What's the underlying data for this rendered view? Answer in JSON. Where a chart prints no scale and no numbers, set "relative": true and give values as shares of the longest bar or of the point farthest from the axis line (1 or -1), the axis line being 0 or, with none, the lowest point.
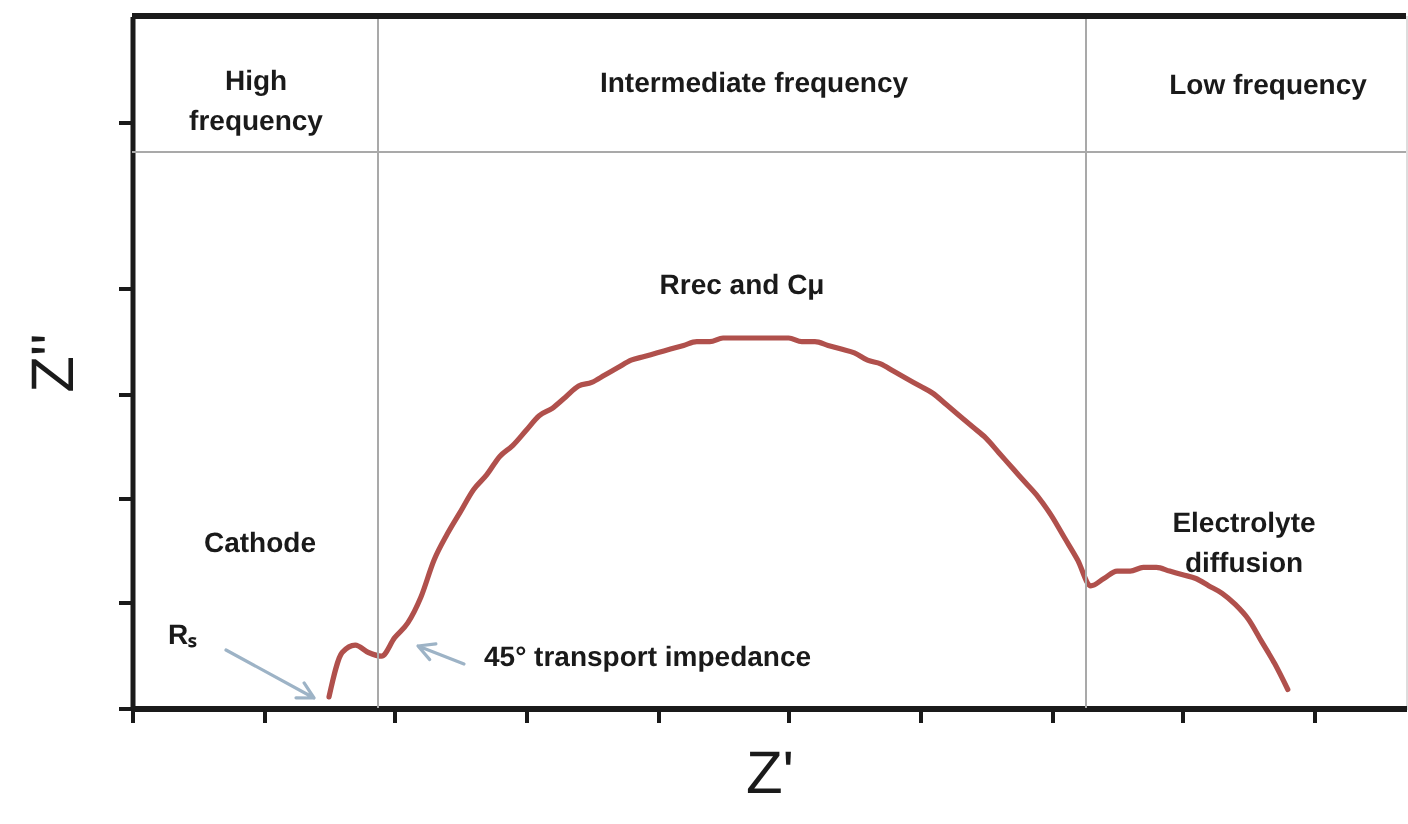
{
  "chart_data": {
    "type": "line",
    "xlabel": "Z'",
    "ylabel": "Z''",
    "relative": true,
    "tick_labels": false,
    "categories": [
      null,
      null,
      null,
      null,
      null,
      null,
      null,
      null,
      null,
      null,
      null,
      null,
      null,
      null,
      null,
      null,
      null,
      null,
      null,
      null,
      null,
      null,
      null,
      null,
      null,
      null,
      null,
      null,
      null,
      null,
      null,
      null,
      null,
      null,
      null,
      null,
      null,
      null,
      null,
      null,
      null,
      null,
      null,
      null,
      null,
      null,
      null,
      null,
      null,
      null,
      null,
      null,
      null,
      null,
      null,
      null,
      null,
      null,
      null,
      null,
      null,
      null,
      null,
      null,
      null,
      null,
      null,
      null,
      null,
      null,
      null,
      null,
      null,
      null,
      null,
      null,
      null,
      null,
      null,
      null,
      null,
      null,
      null,
      null,
      null,
      null,
      null,
      null,
      null,
      null,
      null,
      null,
      null,
      null,
      null,
      null,
      null,
      null
    ],
    "color": "#b0504c",
    "values": [
      null,
      null,
      null,
      null,
      null,
      null,
      null,
      null,
      null,
      null,
      null,
      null,
      null,
      null,
      null,
      0.03,
      0.15,
      0.17,
      0.15,
      0.14,
      0.19,
      0.23,
      0.3,
      0.4,
      0.47,
      0.53,
      0.59,
      0.63,
      0.68,
      0.71,
      0.75,
      0.79,
      0.81,
      0.84,
      0.87,
      0.88,
      0.9,
      0.92,
      0.94,
      0.95,
      0.96,
      0.97,
      0.98,
      0.99,
      0.99,
      1.0,
      1.0,
      1.0,
      1.0,
      1.0,
      1.0,
      0.99,
      0.99,
      0.98,
      0.97,
      0.96,
      0.94,
      0.93,
      0.91,
      0.89,
      0.87,
      0.85,
      0.82,
      0.79,
      0.76,
      0.73,
      0.69,
      0.65,
      0.61,
      0.57,
      0.52,
      0.46,
      0.4,
      0.33,
      0.35,
      0.37,
      0.37,
      0.38,
      0.38,
      0.37,
      0.36,
      0.35,
      0.33,
      0.31,
      0.28,
      0.24,
      0.18,
      0.12,
      0.05,
      null,
      null,
      null,
      null,
      null,
      null,
      null,
      null,
      null
    ],
    "annotations": [
      "High frequency",
      "Intermediate frequency",
      "Low frequency",
      "Cathode",
      "Rₛ",
      "45° transport impedance",
      "Rrec and Cμ",
      "Electrolyte diffusion"
    ]
  }
}
